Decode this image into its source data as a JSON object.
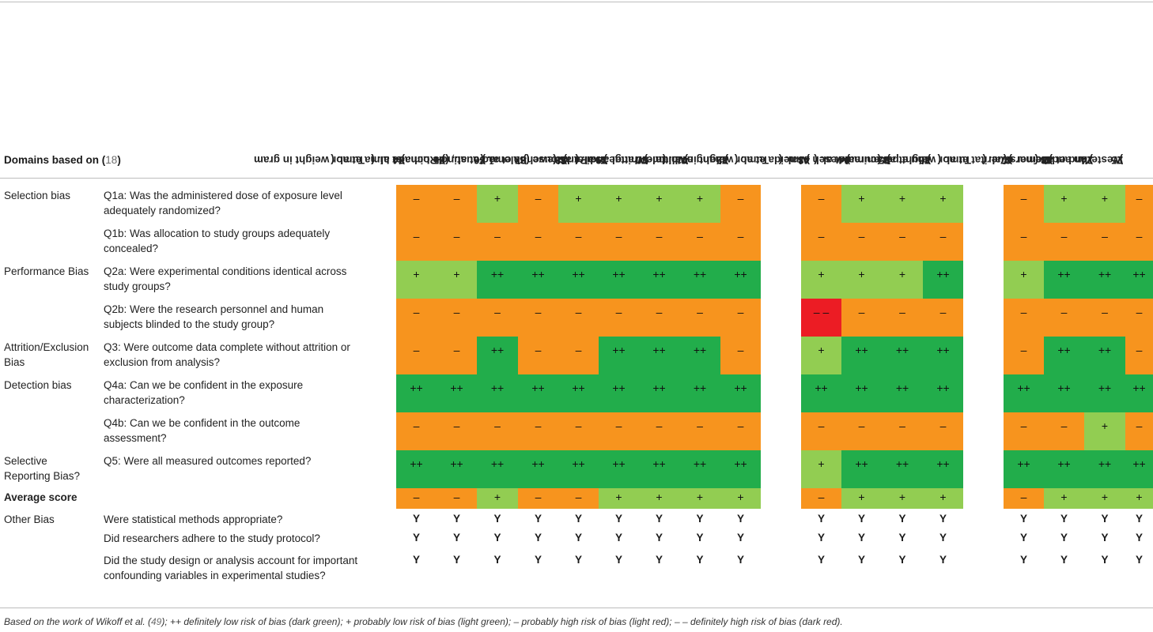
{
  "header": {
    "domain_label": "Domains based on (",
    "domain_ref": "18",
    "domain_close": ")",
    "columns": [
      {
        "name": "Tumor weight in gram",
        "ref": ""
      },
      {
        "name": "de Lima et al. (",
        "ref": "34",
        "close": ")"
      },
      {
        "name": "de Lima et al. (",
        "ref": "35",
        "close": ")"
      },
      {
        "name": "Faustino-Rocha et al. (",
        "ref": "36",
        "close": ")"
      },
      {
        "name": "Salomão et al., (",
        "ref": "37",
        "close": ")"
      },
      {
        "name": "Shewchuk et al. (",
        "ref": "38",
        "close": ")"
      },
      {
        "name": "Tsai et al. (",
        "ref": "39",
        "close": ")"
      },
      {
        "name": "Whittal and Parkhouse (",
        "ref": "40",
        "close": ")"
      },
      {
        "name": "Whittal-Strange et al. (",
        "ref": "41",
        "close": ")"
      },
      {
        "name": "Zhang et al. (",
        "ref": "42",
        "close": ")"
      },
      {
        "name": "Tumor weight in volume",
        "ref": ""
      },
      {
        "name": "Almeida et al. (",
        "ref": "43",
        "close": ")"
      },
      {
        "name": "Aveseh et al. (",
        "ref": "44",
        "close": ")"
      },
      {
        "name": "Bacurau et al. (",
        "ref": "45",
        "close": ")"
      },
      {
        "name": "Zhu et al. (",
        "ref": "46",
        "close": ")"
      },
      {
        "name": "Tumor weight per animal",
        "ref": ""
      },
      {
        "name": "Gueritat et al. (",
        "ref": "47",
        "close": ")"
      },
      {
        "name": "Steiner et al. (",
        "ref": "48",
        "close": ")"
      },
      {
        "name": "Yan and Demars (",
        "ref": "24",
        "close": ")"
      },
      {
        "name": "Westerlind et al. (",
        "ref": "25",
        "close": ")"
      }
    ]
  },
  "rows": [
    {
      "domain": "Selection bias",
      "question": "Q1a: Was the administered dose of exposure level adequately randomized?"
    },
    {
      "domain": "",
      "question": "Q1b: Was allocation to study groups adequately concealed?"
    },
    {
      "domain": "Performance Bias",
      "question": "Q2a: Were experimental conditions identical across study groups?"
    },
    {
      "domain": "",
      "question": "Q2b: Were the research personnel and human subjects blinded to the study group?"
    },
    {
      "domain": "Attrition/Exclusion Bias",
      "question": "Q3: Were outcome data complete without attrition or exclusion from analysis?"
    },
    {
      "domain": "Detection bias",
      "question": "Q4a: Can we be confident in the exposure characterization?"
    },
    {
      "domain": "",
      "question": "Q4b: Can we be confident in the outcome assessment?"
    },
    {
      "domain": "Selective Reporting Bias?",
      "question": "Q5: Were all measured outcomes reported?"
    }
  ],
  "scores": [
    [
      "–",
      "–",
      "+",
      "–",
      "+",
      "+",
      "+",
      "+",
      "–",
      "–",
      "+",
      "+",
      "+",
      "–",
      "+",
      "+",
      "–"
    ],
    [
      "–",
      "–",
      "–",
      "–",
      "–",
      "–",
      "–",
      "–",
      "–",
      "–",
      "–",
      "–",
      "–",
      "–",
      "–",
      "–",
      "–"
    ],
    [
      "+",
      "+",
      "++",
      "++",
      "++",
      "++",
      "++",
      "++",
      "++",
      "+",
      "+",
      "+",
      "++",
      "+",
      "++",
      "++",
      "++"
    ],
    [
      "–",
      "–",
      "–",
      "–",
      "–",
      "–",
      "–",
      "–",
      "–",
      "– –",
      "–",
      "–",
      "–",
      "–",
      "–",
      "–",
      "–"
    ],
    [
      "–",
      "–",
      "++",
      "–",
      "–",
      "++",
      "++",
      "++",
      "–",
      "+",
      "++",
      "++",
      "++",
      "–",
      "++",
      "++",
      "–"
    ],
    [
      "++",
      "++",
      "++",
      "++",
      "++",
      "++",
      "++",
      "++",
      "++",
      "++",
      "++",
      "++",
      "++",
      "++",
      "++",
      "++",
      "++"
    ],
    [
      "–",
      "–",
      "–",
      "–",
      "–",
      "–",
      "–",
      "–",
      "–",
      "–",
      "–",
      "–",
      "–",
      "–",
      "–",
      "+",
      "–"
    ],
    [
      "++",
      "++",
      "++",
      "++",
      "++",
      "++",
      "++",
      "++",
      "++",
      "+",
      "++",
      "++",
      "++",
      "++",
      "++",
      "++",
      "++"
    ]
  ],
  "average": {
    "label": "Average score",
    "values": [
      "–",
      "–",
      "+",
      "–",
      "–",
      "+",
      "+",
      "+",
      "+",
      "–",
      "+",
      "+",
      "+",
      "–",
      "+",
      "+",
      "+"
    ]
  },
  "other_bias": {
    "domain": "Other Bias",
    "questions": [
      "Were statistical methods appropriate?",
      "Did researchers adhere to the study protocol?",
      "Did the study design or analysis account for important confounding variables in experimental studies?"
    ],
    "answer": "Y"
  },
  "footnote": {
    "pre": "Based on the work of Wikoff et al. (",
    "ref": "49",
    "post": "); ++ definitely low risk of bias (dark green); + probably low risk of bias (light green); – probably high risk of bias (light red); – – definitely high risk of bias (dark red)."
  },
  "colors": {
    "dark_green": "#22ad4b",
    "light_green": "#92cd52",
    "orange": "#f7941e",
    "red": "#ec1c24",
    "ref_gray": "#6d6d6d"
  }
}
